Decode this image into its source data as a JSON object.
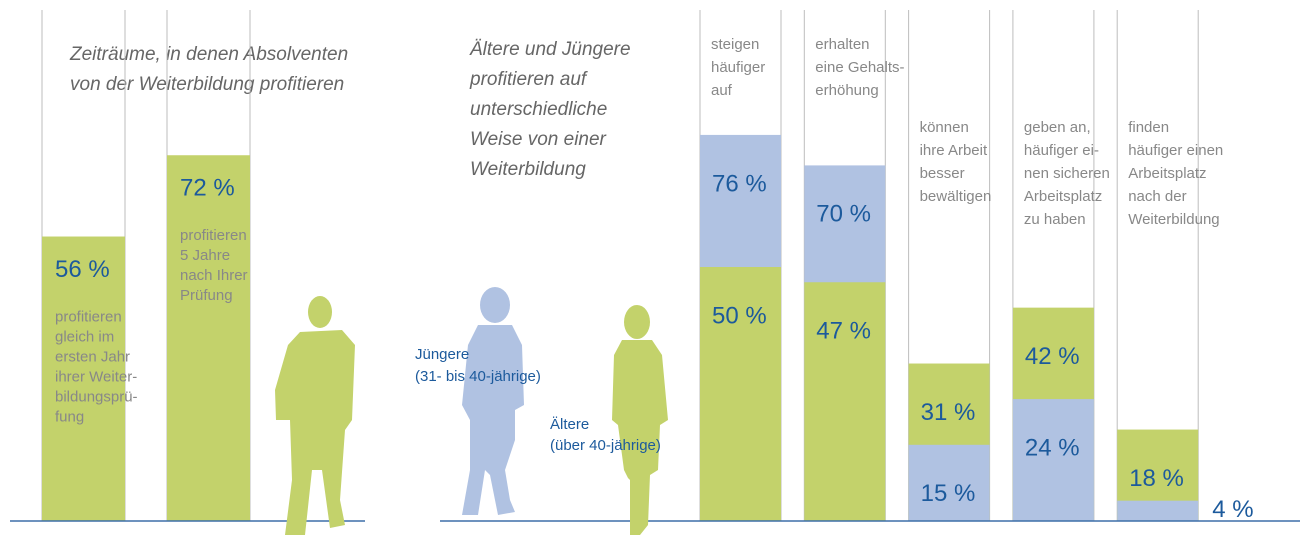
{
  "chart_data": [
    {
      "type": "bar",
      "title": [
        "Zeiträume, in denen Absolventen",
        "von der Weiterbildung profitieren"
      ],
      "categories": [
        [
          "profitieren",
          "gleich im",
          "ersten Jahr",
          "ihrer Weiter-",
          "bildungsprü-",
          "fung"
        ],
        [
          "profitieren",
          "5 Jahre",
          "nach Ihrer",
          "Prüfung"
        ]
      ],
      "values": [
        56,
        72
      ],
      "value_labels": [
        "56 %",
        "72 %"
      ],
      "color": "#c3d26b",
      "ylim": [
        0,
        100
      ]
    },
    {
      "type": "overlap-bar",
      "title": [
        "Ältere und Jüngere",
        "profitieren auf",
        "unterschiedliche",
        "Weise von einer",
        "Weiterbildung"
      ],
      "categories": [
        [
          "steigen",
          "häufiger",
          "auf"
        ],
        [
          "erhalten",
          "eine Gehalts-",
          "erhöhung"
        ],
        [
          "können",
          "ihre Arbeit",
          "besser",
          "bewältigen"
        ],
        [
          "geben an,",
          "häufiger ei-",
          "nen sicheren",
          "Arbeitsplatz",
          "zu haben"
        ],
        [
          "finden",
          "häufiger einen",
          "Arbeitsplatz",
          "nach der",
          "Weiterbildung"
        ]
      ],
      "series": [
        {
          "name": "Jüngere",
          "description": "(31- bis 40-jährige)",
          "color": "#b0c2e2",
          "values": [
            76,
            70,
            15,
            24,
            4
          ],
          "value_labels": [
            "76 %",
            "70 %",
            "15 %",
            "24 %",
            "4 %"
          ]
        },
        {
          "name": "Ältere",
          "description": "(über 40-jährige)",
          "color": "#c3d26b",
          "values": [
            50,
            47,
            31,
            42,
            18
          ],
          "value_labels": [
            "50 %",
            "47 %",
            "31 %",
            "42 %",
            "18 %"
          ]
        }
      ],
      "ylim": [
        0,
        100
      ]
    }
  ]
}
